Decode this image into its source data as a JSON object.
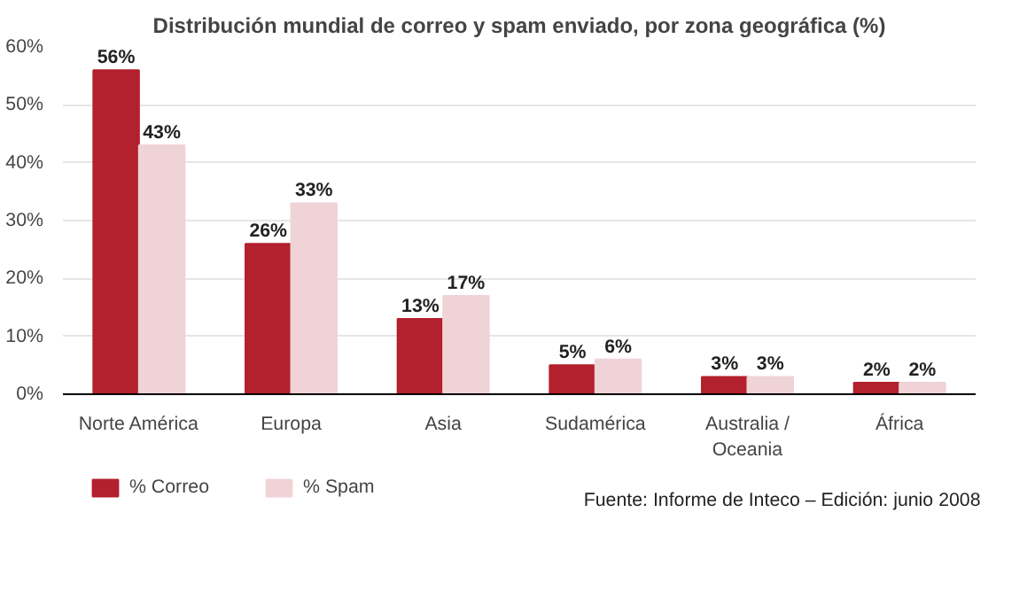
{
  "chart_data": {
    "type": "bar",
    "title": "Distribución mundial de correo y spam enviado, por zona geográfica (%)",
    "categories": [
      "Norte América",
      "Europa",
      "Asia",
      "Sudamérica",
      "Australia / Oceania",
      "África"
    ],
    "series": [
      {
        "name": "% Correo",
        "color": "#b3202e",
        "values": [
          56,
          26,
          13,
          5,
          3,
          2
        ],
        "value_labels": [
          "56%",
          "26%",
          "13%",
          "5%",
          "3%",
          "2%"
        ]
      },
      {
        "name": "% Spam",
        "color": "#f0d3d7",
        "values": [
          43,
          33,
          17,
          6,
          3,
          2
        ],
        "value_labels": [
          "43%",
          "33%",
          "17%",
          "6%",
          "3%",
          "2%"
        ]
      }
    ],
    "ylim": [
      0,
      60
    ],
    "yticks": [
      {
        "value": 0,
        "label": "0%"
      },
      {
        "value": 10,
        "label": "10%"
      },
      {
        "value": 20,
        "label": "20%"
      },
      {
        "value": 30,
        "label": "30%"
      },
      {
        "value": 40,
        "label": "40%"
      },
      {
        "value": 50,
        "label": "50%"
      },
      {
        "value": 60,
        "label": "60%"
      }
    ],
    "grid": "y",
    "legend": "bottom left",
    "data_labels": true,
    "annotations": [
      "Fuente: Informe de Inteco – Edición: junio 2008"
    ]
  }
}
